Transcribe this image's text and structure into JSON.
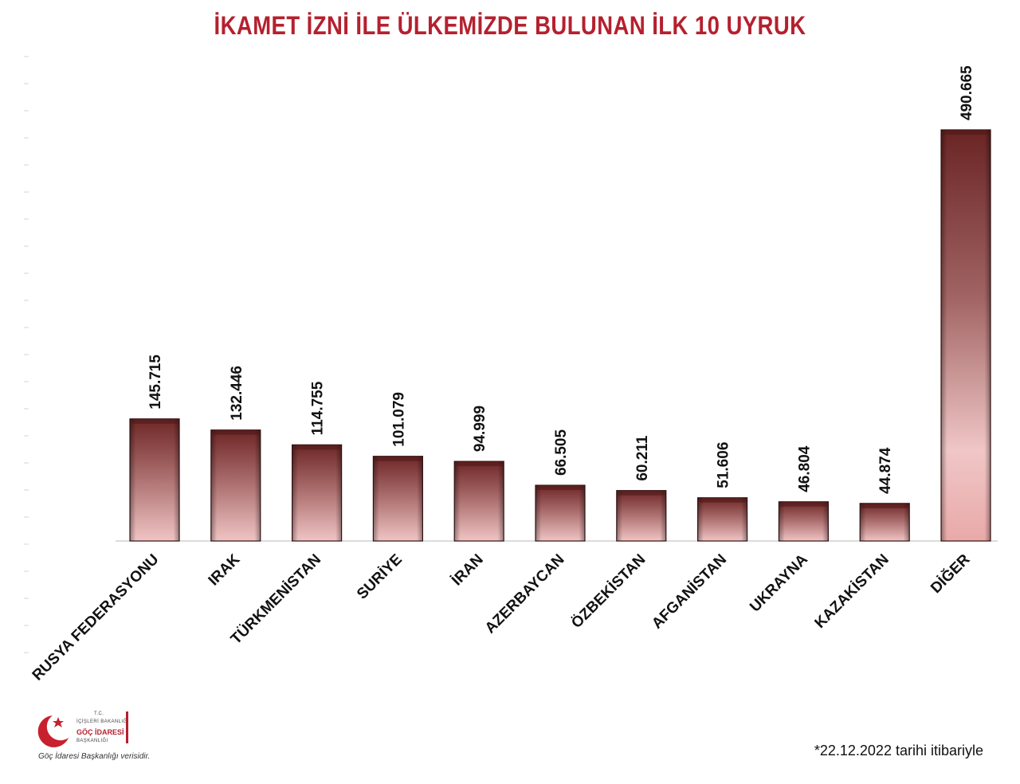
{
  "chart_data": {
    "type": "bar",
    "title": "İKAMET İZNİ İLE ÜLKEMİZDE BULUNAN İLK 10 UYRUK",
    "categories": [
      "RUSYA FEDERASYONU",
      "IRAK",
      "TÜRKMENİSTAN",
      "SURİYE",
      "İRAN",
      "AZERBAYCAN",
      "ÖZBEKİSTAN",
      "AFGANİSTAN",
      "UKRAYNA",
      "KAZAKİSTAN",
      "DİĞER"
    ],
    "values": [
      145715,
      132446,
      114755,
      101079,
      94999,
      66505,
      60211,
      51606,
      46804,
      44874,
      490665
    ],
    "value_labels": [
      "145.715",
      "132.446",
      "114.755",
      "101.079",
      "94.999",
      "66.505",
      "60.211",
      "51.606",
      "46.804",
      "44.874",
      "490.665"
    ],
    "ylim": [
      0,
      580000
    ],
    "grid": false,
    "colors": {
      "bar_dark": "#7a2e2e",
      "bar_light": "#f2c3c3",
      "title": "#b5202e"
    }
  },
  "footer": {
    "logo": {
      "line1": "T.C.",
      "line2": "İÇİŞLERİ BAKANLIĞI",
      "line3": "GÖÇ İDARESİ",
      "line4": "BAŞKANLIĞI"
    },
    "source": "Göç İdaresi Başkanlığı verisidir.",
    "date_note": "*22.12.2022 tarihi itibariyle"
  }
}
